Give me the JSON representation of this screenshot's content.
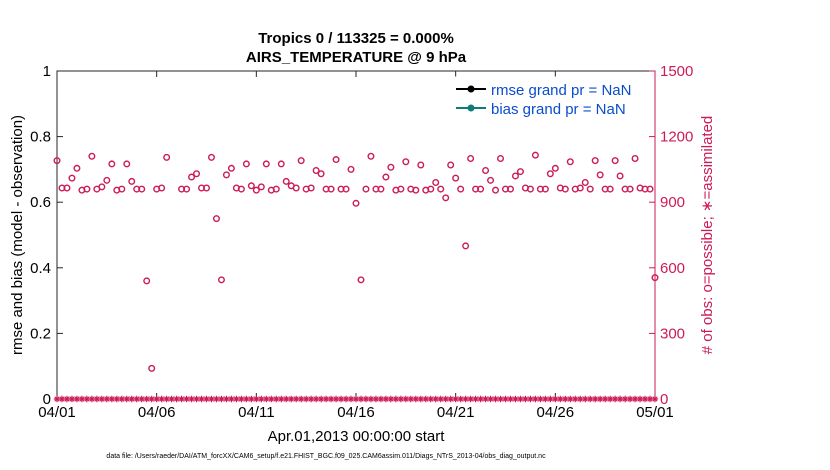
{
  "chart_data": {
    "type": "scatter",
    "title": "Tropics 0 / 113325 = 0.000%",
    "subtitle": "AIRS_TEMPERATURE @ 9 hPa",
    "xlabel": "Apr.01,2013 00:00:00 start",
    "ylabel": "rmse and bias (model - observation)",
    "y2label": "# of obs: o=possible; ∗=assimilated",
    "footnote": "data file: /Users/raeder/DAI/ATM_forcXX/CAM6_setup/f.e21.FHIST_BGC.f09_025.CAM6assim.011/Diags_NTrS_2013-04/obs_diag_output.nc",
    "xlim": [
      0,
      30
    ],
    "ylim": [
      0,
      1
    ],
    "y2lim": [
      0,
      1500
    ],
    "x_ticks": [
      0,
      5,
      10,
      15,
      20,
      25,
      30
    ],
    "x_tick_labels": [
      "04/01",
      "04/06",
      "04/11",
      "04/16",
      "04/21",
      "04/26",
      "05/01"
    ],
    "y_tick_labels": [
      "0",
      "0.2",
      "0.4",
      "0.6",
      "0.8",
      "1"
    ],
    "y2_tick_labels": [
      "0",
      "300",
      "600",
      "900",
      "1200",
      "1500"
    ],
    "legend": [
      {
        "label": "rmse grand pr = NaN",
        "color": "#000000"
      },
      {
        "label": "bias grand pr = NaN",
        "color": "#0e7c7b"
      }
    ],
    "legend_position": "top-right",
    "colors": {
      "obs": "#cc1b55",
      "rmse": "#000000",
      "bias": "#0e7c7b"
    },
    "series": [
      {
        "name": "possible observations (o)",
        "axis": "right",
        "x": [
          0.0,
          0.25,
          0.5,
          0.75,
          1.0,
          1.25,
          1.5,
          1.75,
          2.0,
          2.25,
          2.5,
          2.75,
          3.0,
          3.25,
          3.5,
          3.75,
          4.0,
          4.25,
          4.5,
          4.75,
          5.0,
          5.25,
          5.5,
          6.25,
          6.5,
          6.75,
          7.0,
          7.25,
          7.5,
          7.75,
          8.0,
          8.25,
          8.5,
          8.75,
          9.0,
          9.25,
          9.5,
          9.75,
          10.0,
          10.25,
          10.5,
          10.75,
          11.0,
          11.25,
          11.5,
          11.75,
          12.0,
          12.25,
          12.5,
          12.75,
          13.0,
          13.25,
          13.5,
          13.75,
          14.0,
          14.25,
          14.5,
          14.75,
          15.0,
          15.25,
          15.5,
          15.75,
          16.0,
          16.25,
          16.5,
          16.75,
          17.0,
          17.25,
          17.5,
          17.75,
          18.0,
          18.25,
          18.5,
          18.75,
          19.0,
          19.25,
          19.5,
          19.75,
          20.0,
          20.25,
          20.5,
          20.75,
          21.0,
          21.25,
          21.5,
          21.75,
          22.0,
          22.25,
          22.5,
          22.75,
          23.0,
          23.25,
          23.5,
          23.75,
          24.0,
          24.25,
          24.5,
          24.75,
          25.0,
          25.25,
          25.5,
          25.75,
          26.0,
          26.25,
          26.5,
          26.75,
          27.0,
          27.25,
          27.5,
          27.75,
          28.0,
          28.25,
          28.5,
          28.75,
          29.0,
          29.25,
          29.5,
          29.75,
          30.0
        ],
        "y": [
          1090,
          965,
          965,
          1010,
          1055,
          955,
          960,
          1110,
          960,
          970,
          1000,
          1075,
          955,
          960,
          1075,
          995,
          960,
          960,
          540,
          140,
          960,
          965,
          1105,
          960,
          960,
          1015,
          1030,
          965,
          965,
          1105,
          825,
          545,
          1025,
          1055,
          965,
          960,
          1075,
          975,
          955,
          970,
          1075,
          955,
          960,
          1075,
          995,
          975,
          965,
          1090,
          960,
          965,
          1045,
          1030,
          960,
          960,
          1095,
          960,
          960,
          1050,
          895,
          545,
          960,
          1110,
          960,
          960,
          1015,
          1060,
          955,
          960,
          1085,
          960,
          955,
          1070,
          955,
          960,
          990,
          960,
          920,
          1070,
          1010,
          960,
          700,
          1100,
          960,
          960,
          1045,
          1000,
          955,
          1100,
          960,
          960,
          1020,
          1040,
          965,
          960,
          1115,
          960,
          960,
          1030,
          1055,
          965,
          960,
          1085,
          960,
          965,
          990,
          960,
          1090,
          1025,
          960,
          960,
          1090,
          1020,
          960,
          960,
          1100,
          965,
          960,
          960,
          555
        ]
      },
      {
        "name": "assimilated observations (∗)",
        "axis": "right",
        "step": 0.25,
        "value": 0
      },
      {
        "name": "rmse",
        "axis": "left",
        "values": []
      },
      {
        "name": "bias",
        "axis": "left",
        "values": []
      }
    ]
  }
}
